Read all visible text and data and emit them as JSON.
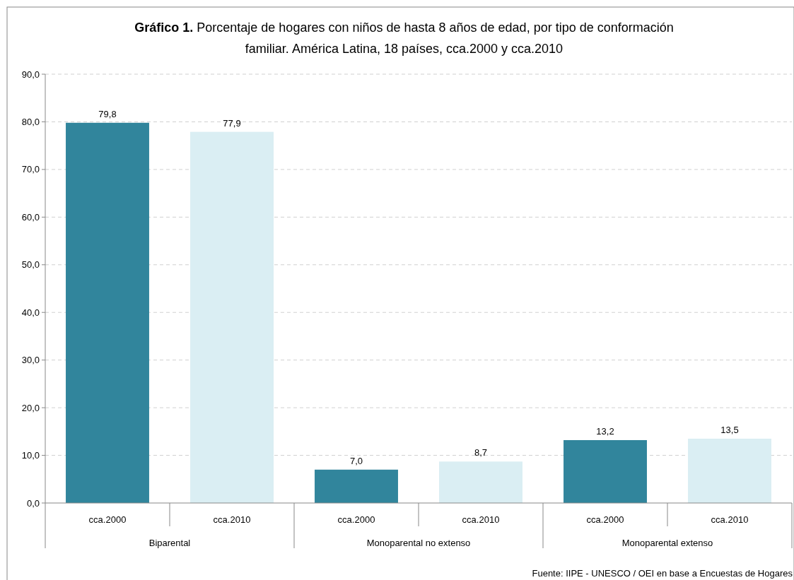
{
  "chart_data": {
    "type": "bar",
    "title": "Gráfico 1. Porcentaje de hogares con niños de hasta 8 años de edad, por tipo de conformación familiar. América Latina, 18 países, cca.2000 y cca.2010",
    "categories": [
      "Biparental",
      "Monoparental no extenso",
      "Monoparental extenso"
    ],
    "series": [
      {
        "name": "cca.2000",
        "color": "#31859c",
        "values": [
          79.8,
          7.0,
          13.2
        ],
        "value_labels": [
          "79,8",
          "7,0",
          "13,2"
        ]
      },
      {
        "name": "cca.2010",
        "color": "#daeef3",
        "values": [
          77.9,
          8.7,
          13.5
        ],
        "value_labels": [
          "77,9",
          "8,7",
          "13,5"
        ]
      }
    ],
    "ylim": [
      0,
      90
    ],
    "yticks": [
      {
        "value": 0,
        "label": "0,0"
      },
      {
        "value": 10,
        "label": "10,0"
      },
      {
        "value": 20,
        "label": "20,0"
      },
      {
        "value": 30,
        "label": "30,0"
      },
      {
        "value": 40,
        "label": "40,0"
      },
      {
        "value": 50,
        "label": "50,0"
      },
      {
        "value": 60,
        "label": "60,0"
      },
      {
        "value": 70,
        "label": "70,0"
      },
      {
        "value": 80,
        "label": "80,0"
      },
      {
        "value": 90,
        "label": "90,0"
      }
    ],
    "grid": "y",
    "annotations": [
      "Fuente: IIPE - UNESCO / OEI en base a Encuestas de Hogares"
    ]
  }
}
